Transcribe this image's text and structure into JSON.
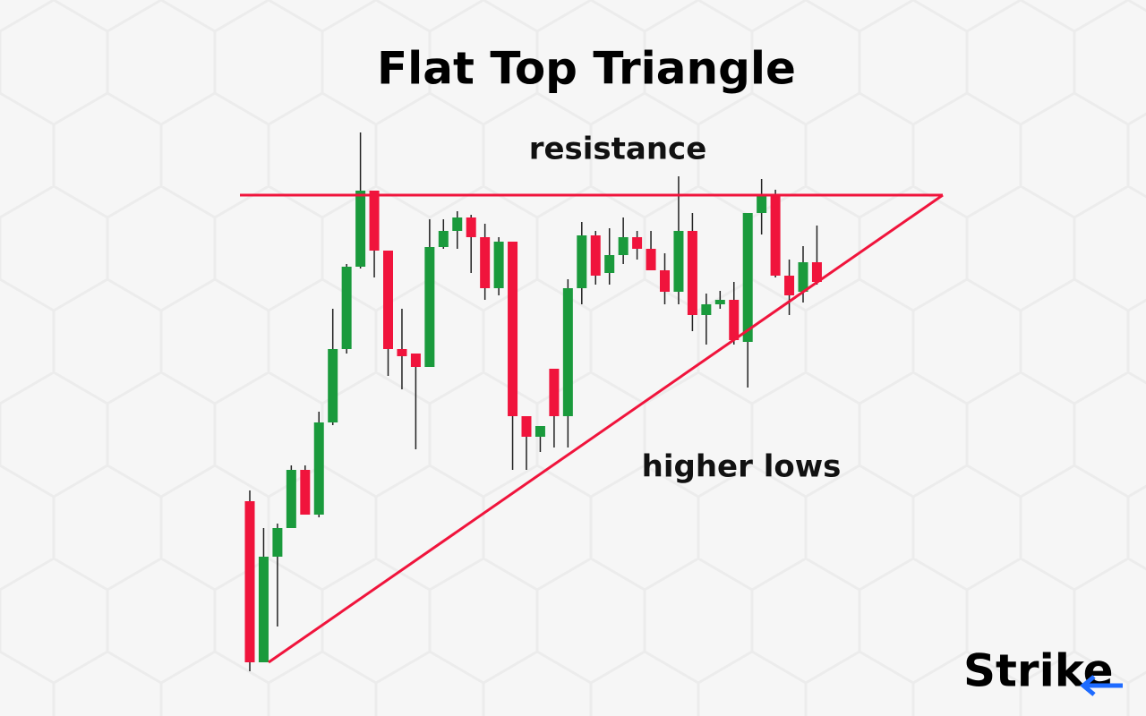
{
  "chart_data": {
    "type": "candlestick",
    "title": "Flat Top Triangle",
    "annotations": [
      "resistance",
      "higher lows"
    ],
    "brand": "Strike",
    "up_color": "#1a9a3c",
    "down_color": "#f0143c",
    "ylim": [
      0,
      800
    ],
    "open": [
      240,
      60,
      178,
      210,
      275,
      225,
      328,
      410,
      502,
      587,
      520,
      410,
      405,
      390,
      524,
      542,
      557,
      535,
      478,
      530,
      335,
      312,
      388,
      335,
      478,
      537,
      495,
      515,
      535,
      522,
      498,
      474,
      542,
      448,
      460,
      465,
      418,
      562,
      582,
      492,
      474,
      507
    ],
    "close": [
      60,
      178,
      210,
      275,
      225,
      328,
      410,
      502,
      587,
      520,
      410,
      402,
      390,
      524,
      542,
      557,
      535,
      478,
      530,
      335,
      312,
      324,
      335,
      478,
      537,
      492,
      515,
      535,
      522,
      498,
      474,
      542,
      448,
      460,
      465,
      420,
      562,
      582,
      492,
      470,
      507,
      485
    ],
    "high": [
      252,
      210,
      215,
      280,
      280,
      340,
      455,
      505,
      652,
      587,
      520,
      455,
      405,
      555,
      555,
      564,
      560,
      550,
      535,
      530,
      335,
      324,
      388,
      488,
      552,
      542,
      545,
      557,
      542,
      542,
      517,
      603,
      562,
      472,
      475,
      485,
      562,
      600,
      588,
      510,
      525,
      548
    ],
    "low": [
      50,
      60,
      100,
      210,
      225,
      222,
      325,
      405,
      500,
      490,
      380,
      365,
      298,
      390,
      522,
      522,
      495,
      465,
      470,
      275,
      275,
      295,
      300,
      300,
      460,
      482,
      482,
      505,
      510,
      498,
      460,
      460,
      430,
      415,
      455,
      415,
      367,
      538,
      490,
      448,
      462,
      482
    ]
  }
}
